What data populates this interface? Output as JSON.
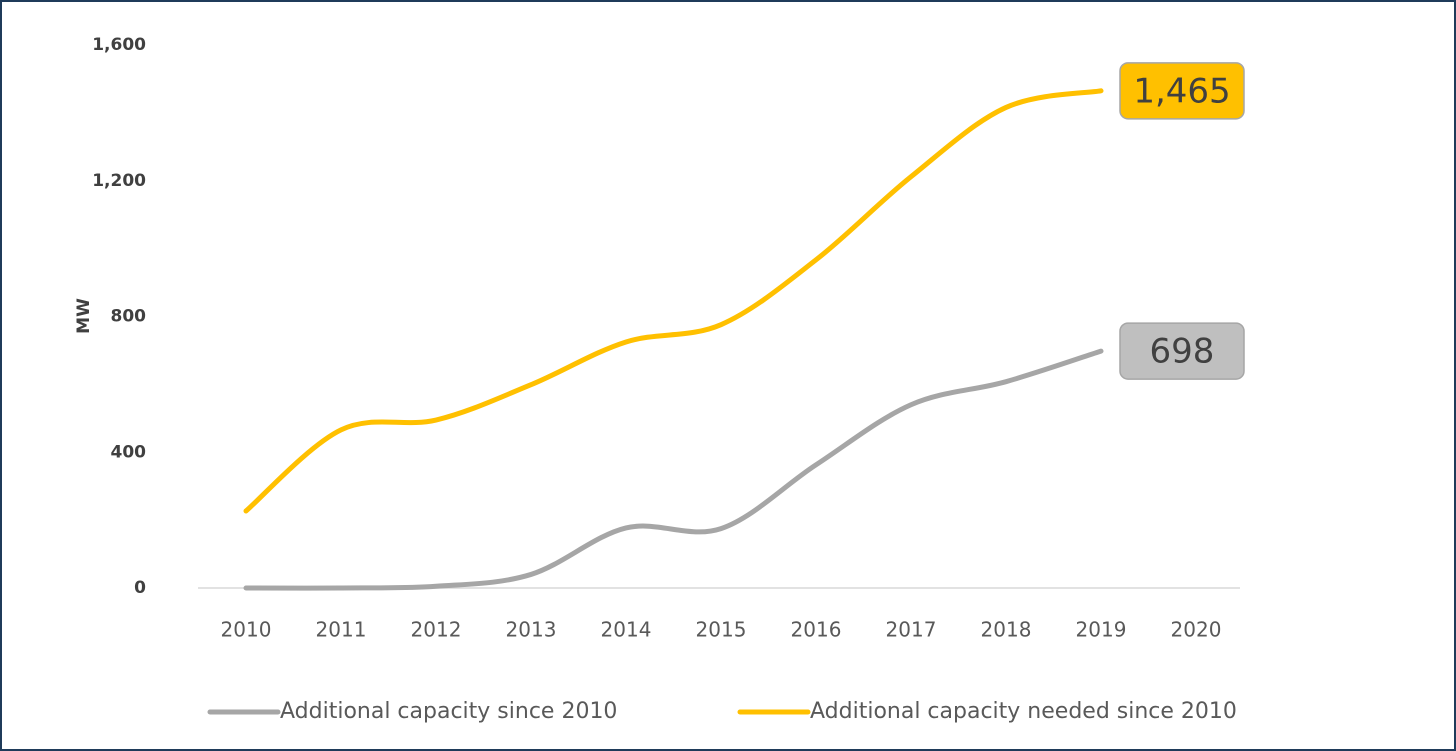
{
  "chart_data": {
    "type": "line",
    "y_label": "MW",
    "categories": [
      "2010",
      "2011",
      "2012",
      "2013",
      "2014",
      "2015",
      "2016",
      "2017",
      "2018",
      "2019",
      "2020"
    ],
    "series": [
      {
        "name": "Additional capacity since 2010",
        "color": "#a6a6a6",
        "values": [
          0,
          0,
          5,
          40,
          177,
          175,
          363,
          540,
          608,
          698,
          null
        ],
        "value_labels": [
          null,
          null,
          null,
          null,
          null,
          null,
          null,
          null,
          null,
          "698",
          null
        ],
        "label_fill": "#bfbfbf",
        "label_text_color": "#404040"
      },
      {
        "name": "Additional capacity needed since 2010",
        "color": "#ffc000",
        "values": [
          227,
          466,
          495,
          599,
          725,
          776,
          967,
          1212,
          1416,
          1465,
          null
        ],
        "value_labels": [
          null,
          null,
          null,
          null,
          null,
          null,
          null,
          null,
          null,
          "1,465",
          null
        ],
        "label_fill": "#ffc000",
        "label_text_color": "#404040"
      }
    ],
    "ylim": [
      0,
      1600
    ],
    "yticks": [
      0,
      {
        "value": 400,
        "label": "400"
      },
      {
        "value": 800,
        "label": "800"
      },
      {
        "value": 1200,
        "label": "1,200"
      },
      {
        "value": 1600,
        "label": "1,600"
      }
    ],
    "grid": false,
    "legend": "bottom"
  }
}
